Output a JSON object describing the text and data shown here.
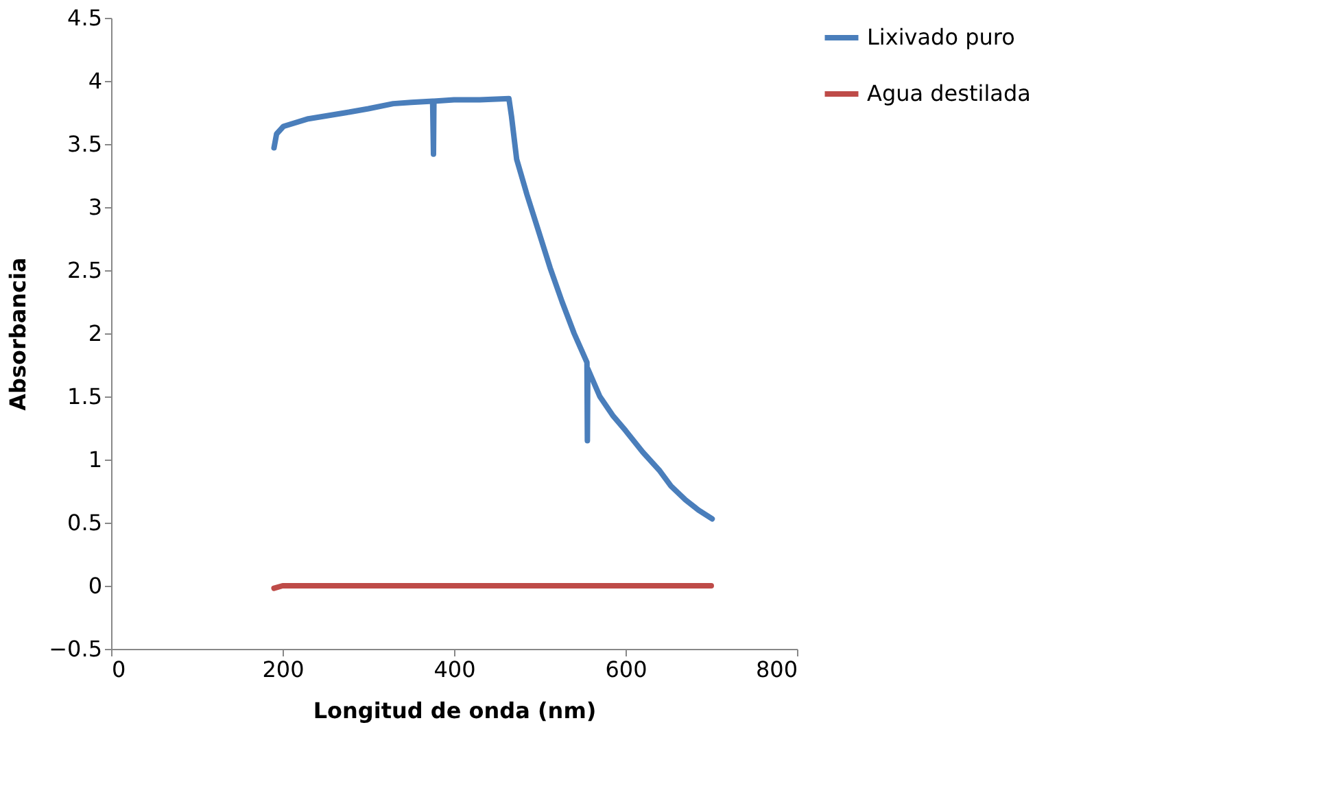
{
  "chart_data": {
    "type": "line",
    "xlabel": "Longitud de onda (nm)",
    "ylabel": "Absorbancia",
    "xlim": [
      0,
      800
    ],
    "xticks": [
      0,
      200,
      400,
      600,
      800
    ],
    "ylim": [
      -0.5,
      4.5
    ],
    "yticks": [
      -0.5,
      0,
      0.5,
      1,
      1.5,
      2,
      2.5,
      3,
      3.5,
      4,
      4.5
    ],
    "grid": false,
    "legend": "right",
    "marker": "none",
    "line_style": "solid",
    "series": [
      {
        "name": "Lixivado puro",
        "color": "#4a7ebb",
        "x": [
          190,
          193,
          201,
          230,
          275,
          300,
          329,
          350,
          375,
          376,
          376.5,
          400,
          430,
          464,
          467,
          473,
          485,
          499,
          512,
          526,
          540,
          555,
          555.5,
          556,
          570,
          585,
          600,
          620,
          640,
          653,
          670,
          685,
          701
        ],
        "values": [
          3.47,
          3.58,
          3.64,
          3.7,
          3.75,
          3.78,
          3.82,
          3.83,
          3.84,
          3.42,
          3.84,
          3.85,
          3.85,
          3.86,
          3.72,
          3.38,
          3.1,
          2.8,
          2.52,
          2.25,
          2.0,
          1.77,
          1.15,
          1.72,
          1.5,
          1.35,
          1.23,
          1.06,
          0.91,
          0.79,
          0.68,
          0.6,
          0.53
        ]
      },
      {
        "name": "Agua destilada",
        "color": "#be4b48",
        "x": [
          190,
          200,
          450,
          700
        ],
        "values": [
          -0.02,
          0,
          0,
          0
        ]
      }
    ]
  }
}
